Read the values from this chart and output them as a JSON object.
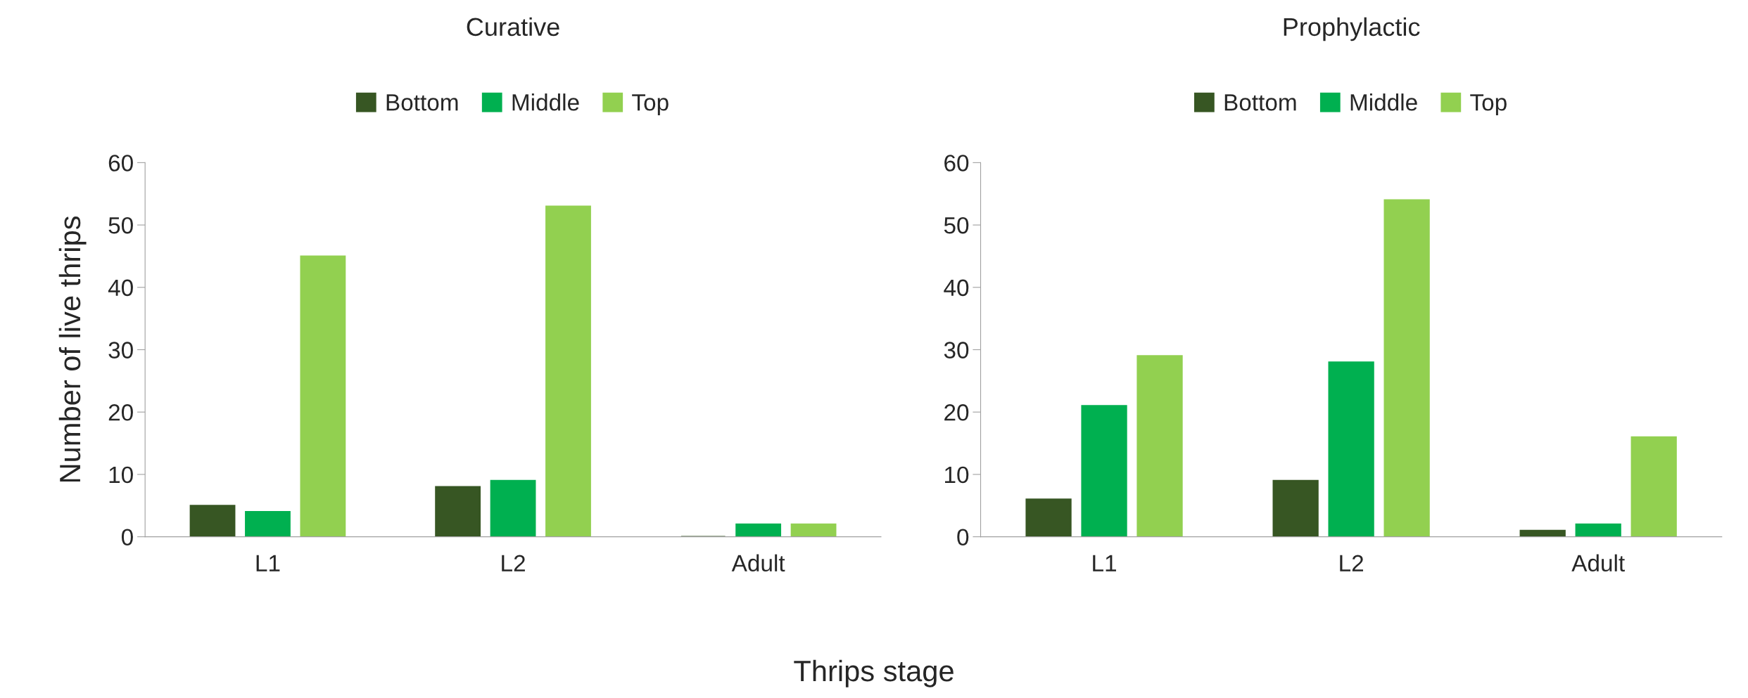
{
  "chart_data": [
    {
      "type": "bar",
      "title": "Curative",
      "ylabel": "Number of live thrips",
      "xlabel": "Thrips stage",
      "categories": [
        "L1",
        "L2",
        "Adult"
      ],
      "ylim": [
        0,
        60
      ],
      "yticks": [
        0,
        10,
        20,
        30,
        40,
        50,
        60
      ],
      "grid": false,
      "legend": "top",
      "series": [
        {
          "name": "Bottom",
          "color": "#375623",
          "values": [
            5,
            8,
            0
          ]
        },
        {
          "name": "Middle",
          "color": "#00b050",
          "values": [
            4,
            9,
            2
          ]
        },
        {
          "name": "Top",
          "color": "#92d050",
          "values": [
            45,
            53,
            2
          ]
        }
      ]
    },
    {
      "type": "bar",
      "title": "Prophylactic",
      "categories": [
        "L1",
        "L2",
        "Adult"
      ],
      "ylim": [
        0,
        60
      ],
      "yticks": [
        0,
        10,
        20,
        30,
        40,
        50,
        60
      ],
      "grid": false,
      "legend": "top",
      "series": [
        {
          "name": "Bottom",
          "color": "#375623",
          "values": [
            6,
            9,
            1
          ]
        },
        {
          "name": "Middle",
          "color": "#00b050",
          "values": [
            21,
            28,
            2
          ]
        },
        {
          "name": "Top",
          "color": "#92d050",
          "values": [
            29,
            54,
            16
          ]
        }
      ]
    }
  ]
}
